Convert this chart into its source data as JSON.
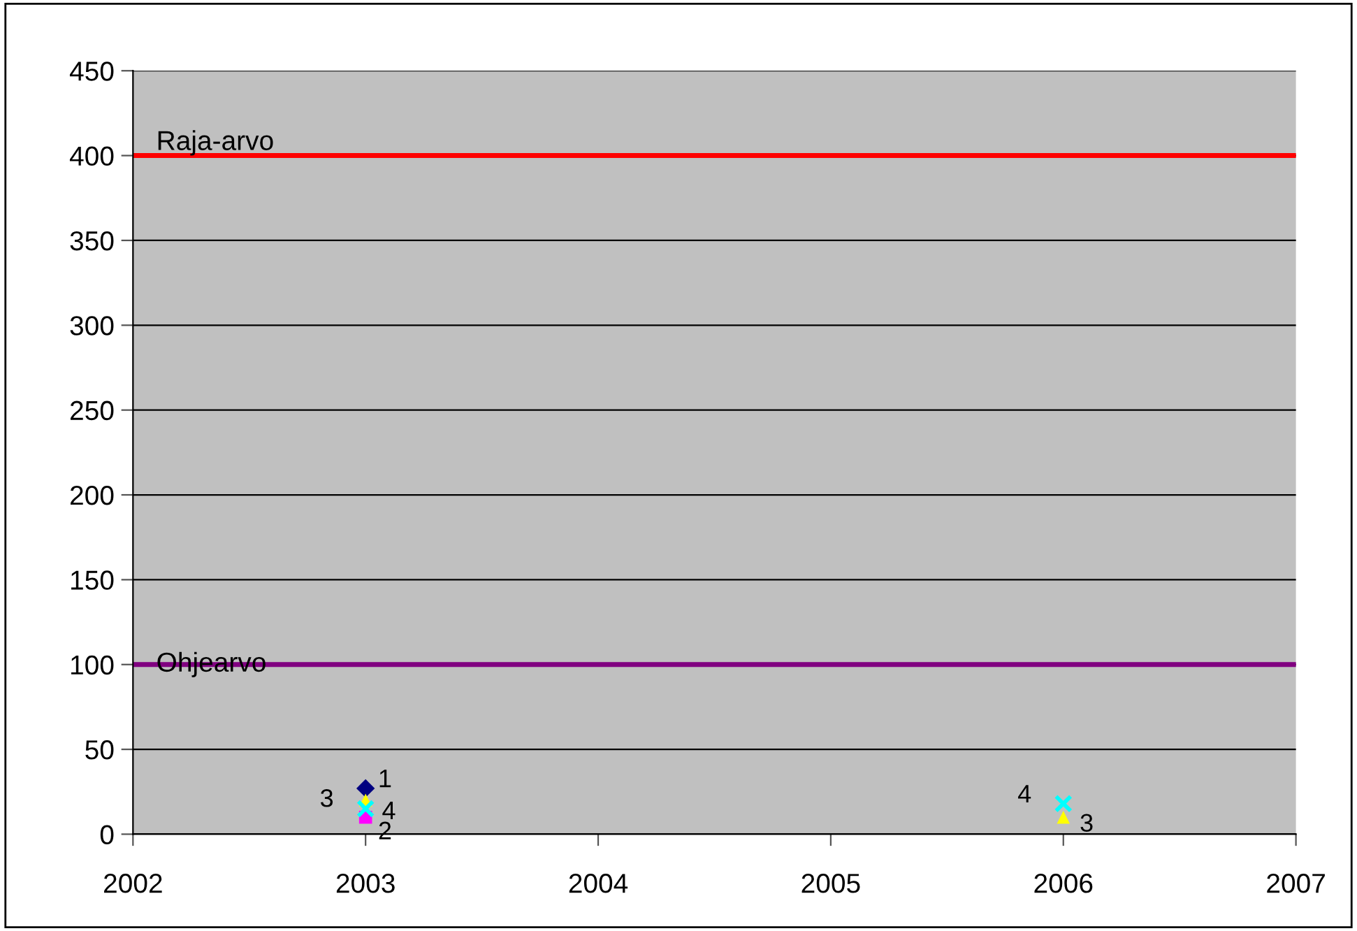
{
  "chart_data": {
    "type": "scatter",
    "x": [
      2003,
      2006
    ],
    "series": [
      {
        "name": "1",
        "color": "#000080",
        "marker": "diamond",
        "values": [
          27,
          null
        ]
      },
      {
        "name": "2",
        "color": "#ff00ff",
        "marker": "square",
        "values": [
          10,
          null
        ]
      },
      {
        "name": "3",
        "color": "#ffff00",
        "marker": "triangle",
        "values": [
          20,
          10
        ]
      },
      {
        "name": "4",
        "color": "#00ffff",
        "marker": "cross",
        "values": [
          15,
          18
        ]
      }
    ],
    "xlim": [
      2002,
      2007
    ],
    "xticks": [
      2002,
      2003,
      2004,
      2005,
      2006,
      2007
    ],
    "ylim": [
      0,
      450
    ],
    "yticks": [
      0,
      50,
      100,
      150,
      200,
      250,
      300,
      350,
      400,
      450
    ],
    "ref_lines": [
      {
        "axis": "y",
        "value": 400,
        "label": "Raja-arvo",
        "color": "#ff0000"
      },
      {
        "axis": "y",
        "value": 100,
        "label": "Ohjearvo",
        "color": "#800080"
      }
    ],
    "grid": "y",
    "legend": false
  }
}
